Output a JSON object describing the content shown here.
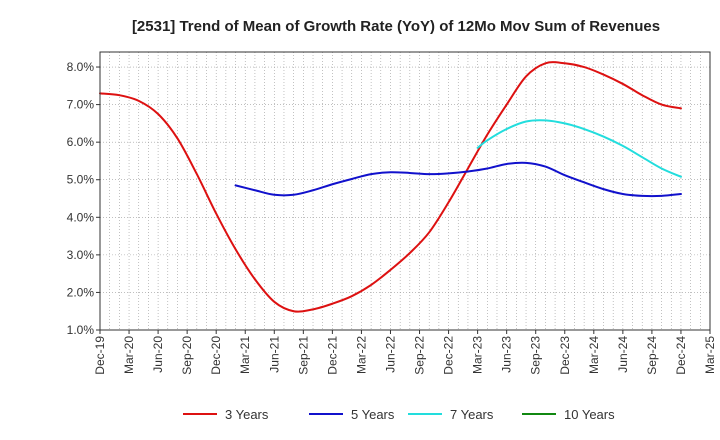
{
  "chart_data": {
    "type": "line",
    "title": "[2531]  Trend of Mean of Growth Rate (YoY) of 12Mo Mov Sum of Revenues",
    "xlabel": "",
    "ylabel": "",
    "ylim": [
      1.0,
      8.4
    ],
    "yticks": [
      1.0,
      2.0,
      3.0,
      4.0,
      5.0,
      6.0,
      7.0,
      8.0
    ],
    "ytick_labels": [
      "1.0%",
      "2.0%",
      "3.0%",
      "4.0%",
      "5.0%",
      "6.0%",
      "7.0%",
      "8.0%"
    ],
    "x_tick_labels": [
      "Dec-19",
      "Mar-20",
      "Jun-20",
      "Sep-20",
      "Dec-20",
      "Mar-21",
      "Jun-21",
      "Sep-21",
      "Dec-21",
      "Mar-22",
      "Jun-22",
      "Sep-22",
      "Dec-22",
      "Mar-23",
      "Jun-23",
      "Sep-23",
      "Dec-23",
      "Mar-24",
      "Jun-24",
      "Sep-24",
      "Dec-24",
      "Mar-25"
    ],
    "x_range_months": [
      0,
      63
    ],
    "grid": true,
    "legend_position": "bottom",
    "series": [
      {
        "name": "3 Years",
        "color": "#dd1111",
        "points": [
          [
            0,
            7.3
          ],
          [
            2,
            7.25
          ],
          [
            4,
            7.1
          ],
          [
            6,
            6.75
          ],
          [
            8,
            6.1
          ],
          [
            10,
            5.15
          ],
          [
            12,
            4.1
          ],
          [
            14,
            3.15
          ],
          [
            16,
            2.35
          ],
          [
            18,
            1.75
          ],
          [
            20,
            1.5
          ],
          [
            22,
            1.55
          ],
          [
            24,
            1.7
          ],
          [
            26,
            1.9
          ],
          [
            28,
            2.2
          ],
          [
            30,
            2.6
          ],
          [
            32,
            3.05
          ],
          [
            34,
            3.6
          ],
          [
            36,
            4.4
          ],
          [
            38,
            5.3
          ],
          [
            40,
            6.2
          ],
          [
            42,
            7.0
          ],
          [
            44,
            7.75
          ],
          [
            46,
            8.1
          ],
          [
            48,
            8.1
          ],
          [
            50,
            8.0
          ],
          [
            52,
            7.8
          ],
          [
            54,
            7.55
          ],
          [
            56,
            7.25
          ],
          [
            58,
            7.0
          ],
          [
            60,
            6.9
          ]
        ]
      },
      {
        "name": "5 Years",
        "color": "#1111cc",
        "points": [
          [
            14,
            4.85
          ],
          [
            16,
            4.72
          ],
          [
            18,
            4.6
          ],
          [
            20,
            4.6
          ],
          [
            22,
            4.72
          ],
          [
            24,
            4.88
          ],
          [
            26,
            5.02
          ],
          [
            28,
            5.15
          ],
          [
            30,
            5.2
          ],
          [
            32,
            5.18
          ],
          [
            34,
            5.15
          ],
          [
            36,
            5.17
          ],
          [
            38,
            5.22
          ],
          [
            40,
            5.3
          ],
          [
            42,
            5.42
          ],
          [
            44,
            5.45
          ],
          [
            46,
            5.35
          ],
          [
            48,
            5.12
          ],
          [
            50,
            4.93
          ],
          [
            52,
            4.75
          ],
          [
            54,
            4.62
          ],
          [
            56,
            4.57
          ],
          [
            58,
            4.57
          ],
          [
            60,
            4.62
          ]
        ]
      },
      {
        "name": "7 Years",
        "color": "#22dddd",
        "points": [
          [
            39,
            5.85
          ],
          [
            40,
            6.05
          ],
          [
            42,
            6.35
          ],
          [
            44,
            6.55
          ],
          [
            46,
            6.58
          ],
          [
            48,
            6.5
          ],
          [
            50,
            6.35
          ],
          [
            52,
            6.15
          ],
          [
            54,
            5.9
          ],
          [
            56,
            5.6
          ],
          [
            58,
            5.3
          ],
          [
            60,
            5.08
          ]
        ]
      },
      {
        "name": "10 Years",
        "color": "#118811",
        "points": []
      }
    ]
  }
}
